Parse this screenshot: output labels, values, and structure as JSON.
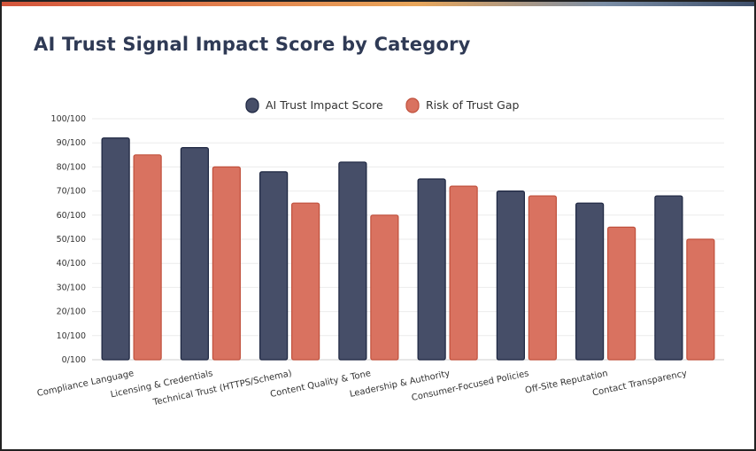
{
  "page": {
    "title": "AI Trust Signal Impact Score by Category"
  },
  "colors": {
    "score": "#464e68",
    "score_stroke": "#1c2540",
    "risk": "#d97260",
    "risk_stroke": "#c0503c",
    "grid": "#ebebeb",
    "text": "#333333"
  },
  "chart_data": {
    "type": "bar",
    "title": "AI Trust Signal Impact Score by Category",
    "xlabel": "",
    "ylabel": "",
    "ylim": [
      0,
      100
    ],
    "yticks": [
      "0/100",
      "10/100",
      "20/100",
      "30/100",
      "40/100",
      "50/100",
      "60/100",
      "70/100",
      "80/100",
      "90/100",
      "100/100"
    ],
    "legend_position": "top-center",
    "grid": true,
    "categories": [
      "Compliance Language",
      "Licensing & Credentials",
      "Technical Trust (HTTPS/Schema)",
      "Content Quality & Tone",
      "Leadership & Authority",
      "Consumer-Focused Policies",
      "Off-Site Reputation",
      "Contact Transparency"
    ],
    "series": [
      {
        "name": "AI Trust Impact Score",
        "values": [
          92,
          88,
          78,
          82,
          75,
          70,
          65,
          68
        ]
      },
      {
        "name": "Risk of Trust Gap",
        "values": [
          85,
          80,
          65,
          60,
          72,
          68,
          55,
          50
        ]
      }
    ]
  }
}
